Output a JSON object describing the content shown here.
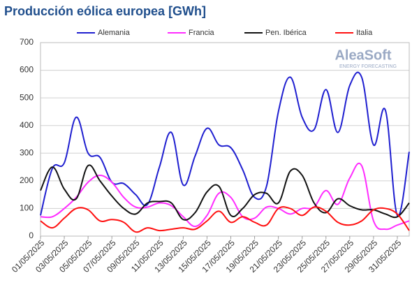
{
  "chart_data": {
    "type": "line",
    "title": "Producción eólica europea [GWh]",
    "watermark": "AleaSoft",
    "watermark_sub": "ENERGY FORECASTING",
    "categories": [
      "01/05/2025",
      null,
      "03/05/2025",
      null,
      "05/05/2025",
      null,
      "07/05/2025",
      null,
      "09/05/2025",
      null,
      "11/05/2025",
      null,
      "13/05/2025",
      null,
      "15/05/2025",
      null,
      "17/05/2025",
      null,
      "19/05/2025",
      null,
      "21/05/2025",
      null,
      "23/05/2025",
      null,
      "25/05/2025",
      null,
      "27/05/2025",
      null,
      "29/05/2025",
      null,
      "31/05/2025",
      null
    ],
    "series": [
      {
        "name": "Alemania",
        "color": "#1f1fd0",
        "values": [
          75,
          245,
          265,
          430,
          300,
          285,
          195,
          190,
          150,
          115,
          250,
          375,
          185,
          290,
          390,
          330,
          320,
          240,
          140,
          180,
          450,
          575,
          430,
          385,
          530,
          375,
          545,
          575,
          330,
          455,
          75,
          305
        ]
      },
      {
        "name": "Francia",
        "color": "#ff2cff",
        "values": [
          70,
          70,
          100,
          140,
          195,
          220,
          195,
          140,
          105,
          105,
          120,
          110,
          70,
          35,
          75,
          155,
          140,
          70,
          65,
          105,
          100,
          80,
          100,
          105,
          165,
          115,
          210,
          255,
          55,
          25,
          40,
          55
        ]
      },
      {
        "name": "Pen. Ibérica",
        "color": "#111111",
        "values": [
          165,
          250,
          170,
          135,
          255,
          200,
          145,
          100,
          80,
          120,
          125,
          120,
          60,
          85,
          160,
          180,
          75,
          100,
          150,
          155,
          120,
          235,
          220,
          120,
          85,
          135,
          110,
          95,
          95,
          80,
          70,
          120
        ]
      },
      {
        "name": "Italia",
        "color": "#ff1010",
        "values": [
          55,
          30,
          65,
          100,
          95,
          55,
          60,
          50,
          15,
          30,
          20,
          25,
          30,
          25,
          55,
          90,
          50,
          70,
          50,
          40,
          100,
          100,
          75,
          105,
          90,
          50,
          40,
          55,
          95,
          100,
          80,
          20
        ]
      }
    ],
    "ylim": [
      0,
      700
    ],
    "yticks": [
      0,
      100,
      200,
      300,
      400,
      500,
      600,
      700
    ],
    "grid": true,
    "legend": "top"
  }
}
